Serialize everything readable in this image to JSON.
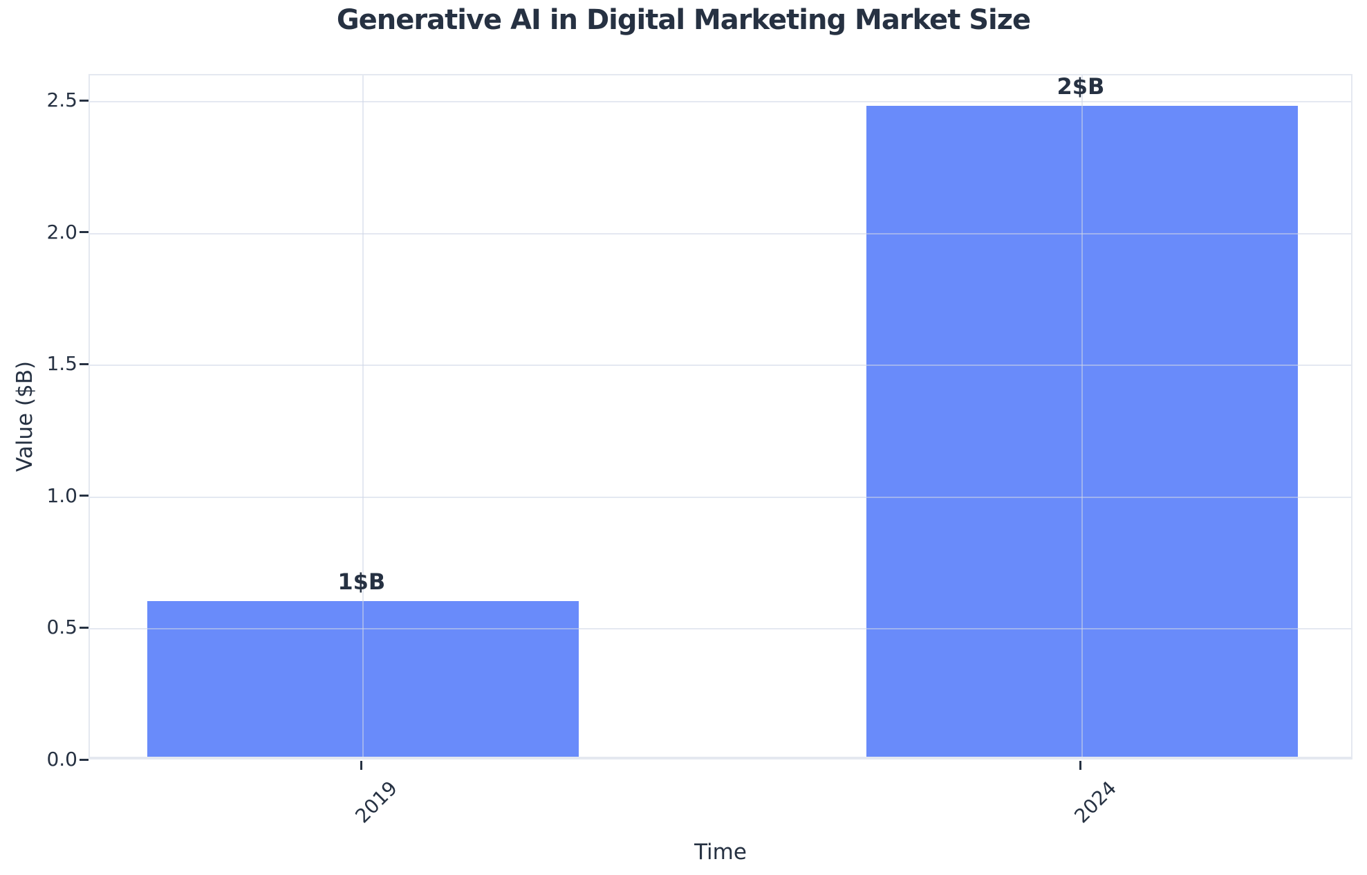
{
  "chart_data": {
    "type": "bar",
    "title": "Generative AI in Digital Marketing Market Size",
    "xlabel": "Time",
    "ylabel": "Value ($B)",
    "categories": [
      "2019",
      "2024"
    ],
    "values": [
      0.6,
      2.48
    ],
    "bar_value_labels": [
      "1$B",
      "2$B"
    ],
    "yticks": [
      0.0,
      0.5,
      1.0,
      1.5,
      2.0,
      2.5
    ],
    "ytick_labels": [
      "0.0",
      "0.5",
      "1.0",
      "1.5",
      "2.0",
      "2.5"
    ],
    "ylim": [
      0,
      2.6
    ],
    "xtick_rotation_deg": 45,
    "grid": true,
    "legend_shown": false,
    "colors": {
      "bar": "#698bfa",
      "text": "#263142",
      "gridline_rgba": "rgba(205,213,230,0.55)",
      "spine": "#e4e8f0",
      "background": "#ffffff"
    }
  }
}
